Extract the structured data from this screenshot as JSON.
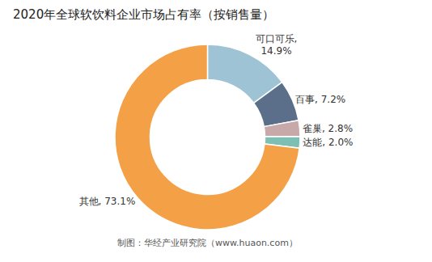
{
  "chart_data": {
    "type": "donut",
    "title": "2020年全球软饮料企业市场占有率（按销售量）",
    "categories": [
      "可口可乐,\n14.9%",
      "百事, 7.2%",
      "雀巢, 2.8%",
      "达能, 2.0%",
      "其他, 73.1%"
    ],
    "values": [
      14.9,
      7.2,
      2.8,
      2.0,
      73.1
    ],
    "colors": [
      "#9DC3D4",
      "#5B6E8A",
      "#C8A9A9",
      "#7DBFB2",
      "#F4A047"
    ],
    "data_labels": true,
    "annotations": [
      "制图：华经产业研究院（www.huaon.com）"
    ]
  }
}
